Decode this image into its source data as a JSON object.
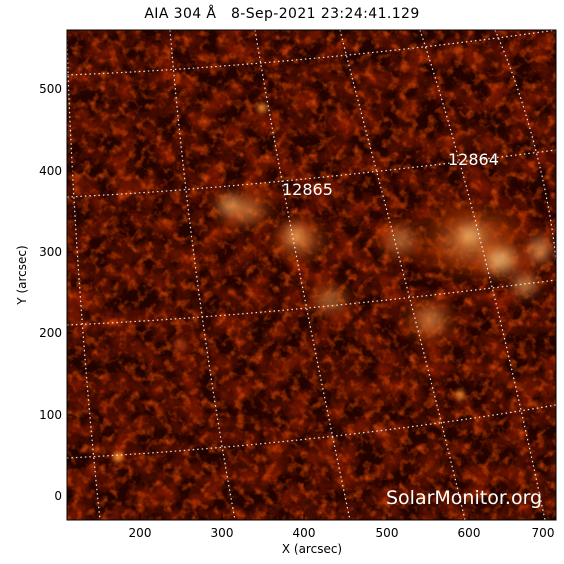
{
  "title": "AIA 304 Å   8-Sep-2021 23:24:41.129",
  "axes": {
    "x_label": "X (arcsec)",
    "y_label": "Y (arcsec)",
    "x_ticks": [
      "200",
      "300",
      "400",
      "500",
      "600",
      "700"
    ],
    "y_ticks": [
      "0",
      "100",
      "200",
      "300",
      "400",
      "500"
    ]
  },
  "active_regions": [
    {
      "number": "12865"
    },
    {
      "number": "12864"
    }
  ],
  "watermark": "SolarMonitor.org",
  "colors": {
    "background": "#000000",
    "plasma_dark": "#3a0600",
    "plasma_mid": "#b52a00",
    "plasma_bright": "#ff8a1a",
    "plasma_hot": "#fff3d0",
    "grid": "#ffffff"
  }
}
